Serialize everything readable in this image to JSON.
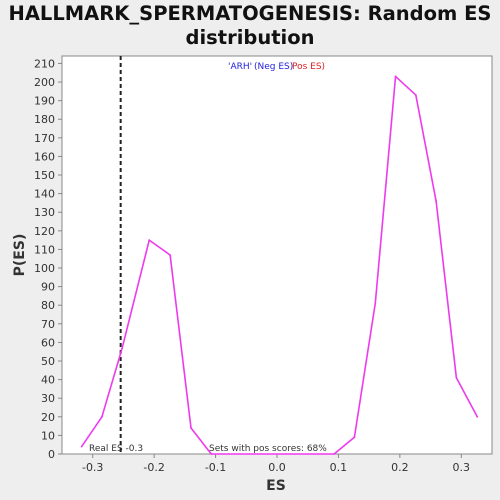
{
  "chart_data": {
    "type": "line",
    "title_line1": "HALLMARK_SPERMATOGENESIS: Random ES",
    "title_line2": "distribution",
    "xlabel": "ES",
    "ylabel": "P(ES)",
    "xlim": [
      -0.35,
      0.35
    ],
    "ylim": [
      0,
      214
    ],
    "x_ticks": [
      -0.3,
      -0.2,
      -0.1,
      0.0,
      0.1,
      0.2,
      0.3
    ],
    "x_tick_labels": [
      "-0.3",
      "-0.2",
      "-0.1",
      "0.0",
      "0.1",
      "0.2",
      "0.3"
    ],
    "y_ticks": [
      0,
      10,
      20,
      30,
      40,
      50,
      60,
      70,
      80,
      90,
      100,
      110,
      120,
      130,
      140,
      150,
      160,
      170,
      180,
      190,
      200,
      210
    ],
    "series": [
      {
        "color": "#ee3aee",
        "x": [
          -0.318,
          -0.285,
          -0.252,
          -0.208,
          -0.174,
          -0.14,
          -0.107,
          0.093,
          0.126,
          0.16,
          0.193,
          0.226,
          0.259,
          0.292,
          0.326
        ],
        "y": [
          4,
          20,
          57,
          115,
          107,
          14,
          0,
          0,
          9,
          81,
          203,
          193,
          136,
          41,
          20
        ]
      }
    ],
    "real_es": -0.2545,
    "legend_gene": "'ARH'",
    "legend_neg": "(Neg ES)",
    "legend_pos": "Pos ES)",
    "legend_gene_color": "#2222dd",
    "legend_pos_color": "#dd2222",
    "real_es_label": "Real ES -0.3",
    "pos_scores_label": "Sets with pos scores: 68%",
    "grid": false
  }
}
